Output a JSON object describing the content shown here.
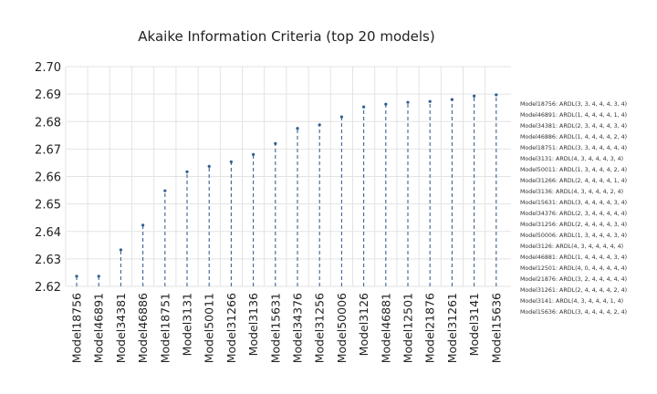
{
  "chart_data": {
    "type": "scatter",
    "title": "Akaike Information Criteria (top 20 models)",
    "xlabel": "",
    "ylabel": "",
    "ylim": [
      2.62,
      2.7
    ],
    "yticks": [
      "2.62",
      "2.63",
      "2.64",
      "2.65",
      "2.66",
      "2.67",
      "2.68",
      "2.69",
      "2.70"
    ],
    "grid": true,
    "legend_position": "right",
    "categories": [
      "Model18756",
      "Model46891",
      "Model34381",
      "Model46886",
      "Model18751",
      "Model3131",
      "Model50011",
      "Model31266",
      "Model3136",
      "Model15631",
      "Model34376",
      "Model31256",
      "Model50006",
      "Model3126",
      "Model46881",
      "Model12501",
      "Model21876",
      "Model31261",
      "Model3141",
      "Model15636"
    ],
    "values": [
      2.6237,
      2.6237,
      2.6333,
      2.6423,
      2.6548,
      2.6617,
      2.6637,
      2.6653,
      2.668,
      2.672,
      2.6775,
      2.6788,
      2.6817,
      2.6853,
      2.6863,
      2.687,
      2.6873,
      2.688,
      2.6893,
      2.6897
    ],
    "legend": [
      "Model18756: ARDL(3, 3, 4, 4, 4, 3, 4)",
      "Model46891: ARDL(1, 4, 4, 4, 4, 1, 4)",
      "Model34381: ARDL(2, 3, 4, 4, 4, 3, 4)",
      "Model46886: ARDL(1, 4, 4, 4, 4, 2, 4)",
      "Model18751: ARDL(3, 3, 4, 4, 4, 4, 4)",
      "Model3131: ARDL(4, 3, 4, 4, 4, 3, 4)",
      "Model50011: ARDL(1, 3, 4, 4, 4, 2, 4)",
      "Model31266: ARDL(2, 4, 4, 4, 4, 1, 4)",
      "Model3136: ARDL(4, 3, 4, 4, 4, 2, 4)",
      "Model15631: ARDL(3, 4, 4, 4, 4, 3, 4)",
      "Model34376: ARDL(2, 3, 4, 4, 4, 4, 4)",
      "Model31256: ARDL(2, 4, 4, 4, 4, 3, 4)",
      "Model50006: ARDL(1, 3, 4, 4, 4, 3, 4)",
      "Model3126: ARDL(4, 3, 4, 4, 4, 4, 4)",
      "Model46881: ARDL(1, 4, 4, 4, 4, 3, 4)",
      "Model12501: ARDL(4, 0, 4, 4, 4, 4, 4)",
      "Model21876: ARDL(3, 2, 4, 4, 4, 4, 4)",
      "Model31261: ARDL(2, 4, 4, 4, 4, 2, 4)",
      "Model3141: ARDL(4, 3, 4, 4, 4, 1, 4)",
      "Model15636: ARDL(3, 4, 4, 4, 4, 2, 4)"
    ],
    "colors": {
      "stem": "#3d6591",
      "marker": "#2f5f8f",
      "grid": "#e3e3e3",
      "text": "#222222"
    }
  }
}
